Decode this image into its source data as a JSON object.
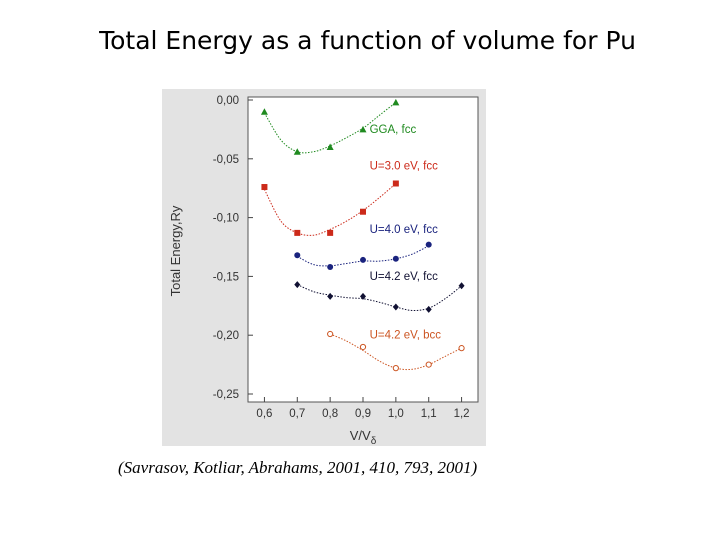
{
  "slide": {
    "title": "Total Energy as a function of volume for Pu",
    "citation": "(Savrasov, Kotliar, Abrahams,  2001, 410, 793, 2001)"
  },
  "chart_data": {
    "type": "scatter",
    "title": "",
    "xlabel": "V/V",
    "xlabel_sub": "δ",
    "ylabel": "Total Energy,Ry",
    "xlim": [
      0.55,
      1.25
    ],
    "ylim": [
      -0.25,
      0.0
    ],
    "x_ticks": [
      0.6,
      0.7,
      0.8,
      0.9,
      1.0,
      1.1,
      1.2
    ],
    "x_tick_labels": [
      "0,6",
      "0,7",
      "0,8",
      "0,9",
      "1,0",
      "1,1",
      "1,2"
    ],
    "y_ticks": [
      0.0,
      -0.05,
      -0.1,
      -0.15,
      -0.2,
      -0.25
    ],
    "y_tick_labels": [
      "0,00",
      "-0,05",
      "-0,10",
      "-0,15",
      "-0,20",
      "-0,25"
    ],
    "grid": false,
    "series": [
      {
        "name": "GGA, fcc",
        "marker": "triangle",
        "color": "#1f8a1f",
        "x": [
          0.6,
          0.7,
          0.8,
          0.9,
          1.0
        ],
        "y": [
          -0.01,
          -0.044,
          -0.04,
          -0.025,
          -0.002
        ],
        "fit_x": [
          0.6,
          0.65,
          0.7,
          0.75,
          0.8,
          0.85,
          0.9,
          0.95,
          1.0
        ],
        "fit_y": [
          -0.011,
          -0.034,
          -0.044,
          -0.044,
          -0.039,
          -0.032,
          -0.024,
          -0.013,
          -0.002
        ]
      },
      {
        "name": "U=3.0 eV, fcc",
        "marker": "square",
        "color": "#cc2a1a",
        "x": [
          0.6,
          0.7,
          0.8,
          0.9,
          1.0
        ],
        "y": [
          -0.074,
          -0.113,
          -0.113,
          -0.095,
          -0.071
        ],
        "fit_x": [
          0.6,
          0.65,
          0.7,
          0.75,
          0.8,
          0.85,
          0.9,
          0.95,
          1.0
        ],
        "fit_y": [
          -0.076,
          -0.103,
          -0.113,
          -0.115,
          -0.11,
          -0.103,
          -0.094,
          -0.083,
          -0.071
        ]
      },
      {
        "name": "U=4.0 eV, fcc",
        "marker": "circle",
        "color": "#1a237e",
        "x": [
          0.7,
          0.8,
          0.9,
          1.0,
          1.1
        ],
        "y": [
          -0.132,
          -0.142,
          -0.136,
          -0.135,
          -0.123
        ],
        "fit_x": [
          0.7,
          0.75,
          0.8,
          0.85,
          0.9,
          0.95,
          1.0,
          1.05,
          1.1
        ],
        "fit_y": [
          -0.133,
          -0.14,
          -0.141,
          -0.139,
          -0.137,
          -0.137,
          -0.135,
          -0.131,
          -0.124
        ]
      },
      {
        "name": "U=4.2 eV, fcc",
        "marker": "diamond",
        "color": "#111133",
        "x": [
          0.7,
          0.8,
          0.9,
          1.0,
          1.1,
          1.2
        ],
        "y": [
          -0.157,
          -0.167,
          -0.167,
          -0.176,
          -0.178,
          -0.158
        ],
        "fit_x": [
          0.7,
          0.75,
          0.8,
          0.85,
          0.9,
          0.95,
          1.0,
          1.05,
          1.1,
          1.15,
          1.2
        ],
        "fit_y": [
          -0.157,
          -0.163,
          -0.166,
          -0.168,
          -0.169,
          -0.172,
          -0.176,
          -0.179,
          -0.177,
          -0.169,
          -0.158
        ]
      },
      {
        "name": "U=4.2 eV, bcc",
        "marker": "open-circle",
        "color": "#cc5522",
        "x": [
          0.8,
          0.9,
          1.0,
          1.1,
          1.2
        ],
        "y": [
          -0.199,
          -0.21,
          -0.228,
          -0.225,
          -0.211
        ],
        "fit_x": [
          0.8,
          0.85,
          0.9,
          0.95,
          1.0,
          1.05,
          1.1,
          1.15,
          1.2
        ],
        "fit_y": [
          -0.199,
          -0.205,
          -0.213,
          -0.222,
          -0.228,
          -0.229,
          -0.225,
          -0.218,
          -0.211
        ]
      }
    ],
    "annotations": [
      {
        "text": "GGA, fcc",
        "x": 0.92,
        "y": -0.028,
        "color": "#1f8a1f"
      },
      {
        "text": "U=3.0 eV, fcc",
        "x": 0.92,
        "y": -0.059,
        "color": "#cc2a1a"
      },
      {
        "text": "U=4.0 eV, fcc",
        "x": 0.92,
        "y": -0.113,
        "color": "#1a237e"
      },
      {
        "text": "U=4.2 eV, fcc",
        "x": 0.92,
        "y": -0.153,
        "color": "#111133"
      },
      {
        "text": "U=4.2 eV, bcc",
        "x": 0.92,
        "y": -0.203,
        "color": "#cc5522"
      }
    ]
  }
}
